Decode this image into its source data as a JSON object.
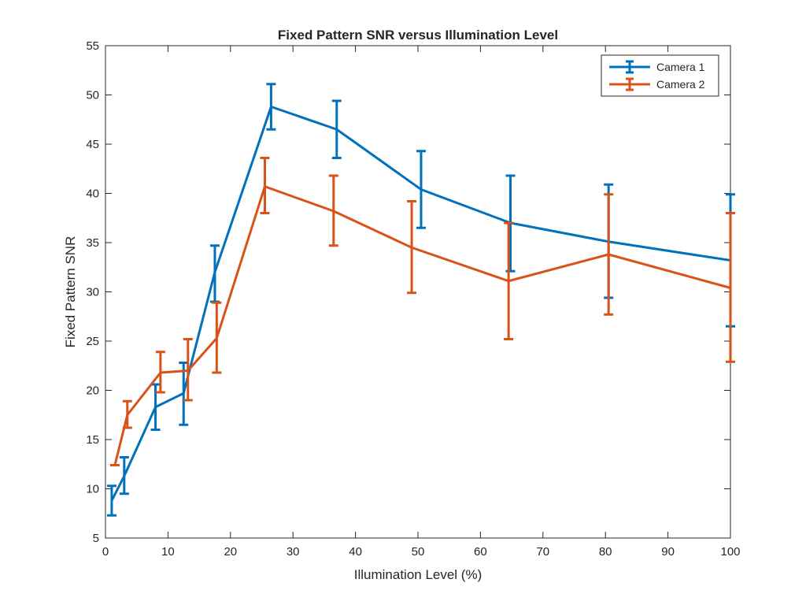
{
  "chart_data": {
    "type": "line",
    "title": "Fixed Pattern SNR versus Illumination Level",
    "xlabel": "Illumination Level (%)",
    "ylabel": "Fixed Pattern SNR",
    "xlim": [
      0,
      100
    ],
    "ylim": [
      5,
      55
    ],
    "xticks": [
      0,
      10,
      20,
      30,
      40,
      50,
      60,
      70,
      80,
      90,
      100
    ],
    "yticks": [
      5,
      10,
      15,
      20,
      25,
      30,
      35,
      40,
      45,
      50,
      55
    ],
    "grid": false,
    "legend_position": "top-right",
    "error_bars": true,
    "series": [
      {
        "name": "Camera 1",
        "color": "#0072BD",
        "x": [
          1,
          3,
          8,
          12.5,
          17.5,
          26.5,
          37,
          50.5,
          64.8,
          80.5,
          100
        ],
        "y": [
          8.8,
          11.3,
          18.3,
          19.7,
          32.0,
          48.8,
          46.5,
          40.4,
          37.0,
          35.1,
          33.2
        ],
        "lower": [
          7.3,
          9.5,
          16.0,
          16.5,
          29.0,
          46.5,
          43.6,
          36.5,
          32.1,
          29.4,
          26.5
        ],
        "upper": [
          10.3,
          13.2,
          20.6,
          22.8,
          34.7,
          51.1,
          49.4,
          44.3,
          41.8,
          40.9,
          39.9
        ]
      },
      {
        "name": "Camera 2",
        "color": "#D95319",
        "x": [
          1.5,
          3.5,
          8.8,
          13.2,
          17.8,
          25.5,
          36.5,
          49.0,
          64.5,
          80.5,
          100
        ],
        "y": [
          12.4,
          17.5,
          21.8,
          22.0,
          25.3,
          40.7,
          38.2,
          34.5,
          31.1,
          33.8,
          30.4
        ],
        "lower": [
          12.4,
          16.2,
          19.8,
          19.0,
          21.8,
          38.0,
          34.7,
          29.9,
          25.2,
          27.7,
          22.9
        ],
        "upper": [
          12.4,
          18.9,
          23.9,
          25.2,
          28.9,
          43.6,
          41.8,
          39.2,
          37.0,
          39.9,
          38.0
        ]
      }
    ]
  }
}
